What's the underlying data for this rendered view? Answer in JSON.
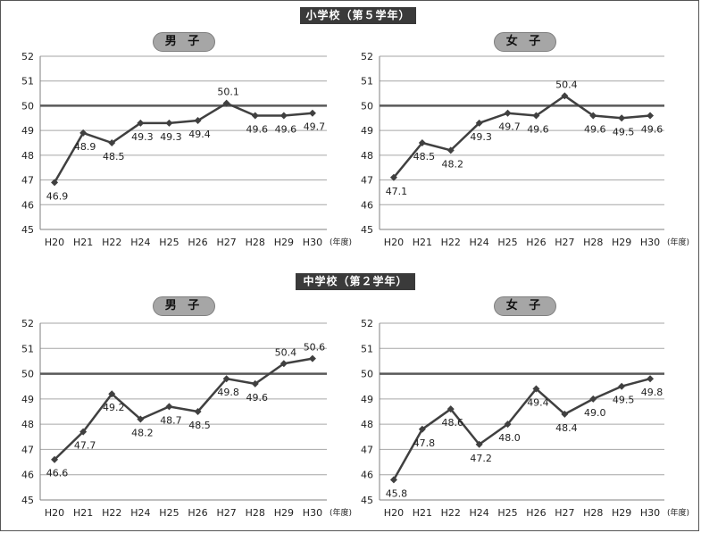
{
  "sections": [
    {
      "title": "小学校（第５学年）",
      "charts": [
        {
          "gender": "男 子"
        },
        {
          "gender": "女 子"
        }
      ]
    },
    {
      "title": "中学校（第２学年）",
      "charts": [
        {
          "gender": "男 子"
        },
        {
          "gender": "女 子"
        }
      ]
    }
  ],
  "colors": {
    "line": "#404040",
    "reference": "#595959",
    "grid": "#a6a6a6",
    "pill": "#a6a6a6",
    "header": "#3a3a3a"
  },
  "chart_data": [
    {
      "type": "line",
      "title": "男 子",
      "categories": [
        "H20",
        "H21",
        "H22",
        "H24",
        "H25",
        "H26",
        "H27",
        "H28",
        "H29",
        "H30"
      ],
      "x_unit": "(年度)",
      "values": [
        46.9,
        48.9,
        48.5,
        49.3,
        49.3,
        49.4,
        50.1,
        49.6,
        49.6,
        49.7
      ],
      "labels": [
        "46.9",
        "48.9",
        "48.5",
        "49.3",
        "49.3",
        "49.4",
        "50.1",
        "49.6",
        "49.6",
        "49.7"
      ],
      "ylim": [
        45,
        52
      ],
      "yticks": [
        45,
        46,
        47,
        48,
        49,
        50,
        51,
        52
      ],
      "reference_line": 50,
      "grid": true
    },
    {
      "type": "line",
      "title": "女 子",
      "categories": [
        "H20",
        "H21",
        "H22",
        "H24",
        "H25",
        "H26",
        "H27",
        "H28",
        "H29",
        "H30"
      ],
      "x_unit": "(年度)",
      "values": [
        47.1,
        48.5,
        48.2,
        49.3,
        49.7,
        49.6,
        50.4,
        49.6,
        49.5,
        49.6
      ],
      "labels": [
        "47.1",
        "48.5",
        "48.2",
        "49.3",
        "49.7",
        "49.6",
        "50.4",
        "49.6",
        "49.5",
        "49.6"
      ],
      "ylim": [
        45,
        52
      ],
      "yticks": [
        45,
        46,
        47,
        48,
        49,
        50,
        51,
        52
      ],
      "reference_line": 50,
      "grid": true
    },
    {
      "type": "line",
      "title": "男 子",
      "categories": [
        "H20",
        "H21",
        "H22",
        "H24",
        "H25",
        "H26",
        "H27",
        "H28",
        "H29",
        "H30"
      ],
      "x_unit": "(年度)",
      "values": [
        46.6,
        47.7,
        49.2,
        48.2,
        48.7,
        48.5,
        49.8,
        49.6,
        50.4,
        50.6
      ],
      "labels": [
        "46.6",
        "47.7",
        "49.2",
        "48.2",
        "48.7",
        "48.5",
        "49.8",
        "49.6",
        "50.4",
        "50.6"
      ],
      "ylim": [
        45,
        52
      ],
      "yticks": [
        45,
        46,
        47,
        48,
        49,
        50,
        51,
        52
      ],
      "reference_line": 50,
      "grid": true
    },
    {
      "type": "line",
      "title": "女 子",
      "categories": [
        "H20",
        "H21",
        "H22",
        "H24",
        "H25",
        "H26",
        "H27",
        "H28",
        "H29",
        "H30"
      ],
      "x_unit": "(年度)",
      "values": [
        45.8,
        47.8,
        48.6,
        47.2,
        48.0,
        49.4,
        48.4,
        49.0,
        49.5,
        49.8
      ],
      "labels": [
        "45.8",
        "47.8",
        "48.6",
        "47.2",
        "48.0",
        "49.4",
        "48.4",
        "49.0",
        "49.5",
        "49.8"
      ],
      "ylim": [
        45,
        52
      ],
      "yticks": [
        45,
        46,
        47,
        48,
        49,
        50,
        51,
        52
      ],
      "reference_line": 50,
      "grid": true
    }
  ]
}
